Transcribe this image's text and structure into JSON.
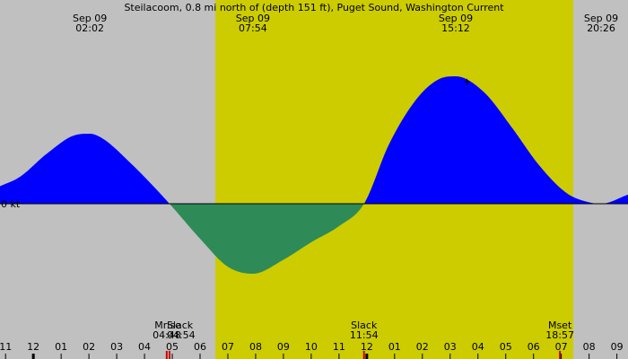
{
  "colors": {
    "background": "#c0c0c0",
    "daylight": "#cccc00",
    "flood": "#0000ff",
    "ebb": "#2e8b57",
    "zero_line": "#000000",
    "moon_marker": "#cc0000"
  },
  "chart_data": {
    "type": "area",
    "title": "Steilacoom, 0.8 mi north of (depth 151 ft), Puget Sound, Washington Current",
    "xlabel": "",
    "ylabel": "",
    "zero_label": "0 kt",
    "x_unit": "hour of day (Sep 09)",
    "xlim": [
      -1.2,
      21.4
    ],
    "ylim": [
      -1.05,
      1.85
    ],
    "daylight": [
      6.55,
      19.43
    ],
    "events_top": [
      {
        "date": "Sep 09",
        "time": "02:02",
        "hour": 2.033
      },
      {
        "date": "Sep 09",
        "time": "07:54",
        "hour": 7.9
      },
      {
        "date": "Sep 09",
        "time": "15:12",
        "hour": 15.2
      },
      {
        "date": "Sep 09",
        "time": "20:26",
        "hour": 20.433
      }
    ],
    "events_bottom": [
      {
        "label": "Mrise",
        "time": "04:48",
        "hour": 4.8,
        "marker": "moon"
      },
      {
        "label": "Slack",
        "time": "04:54",
        "hour": 4.9,
        "marker": "slack"
      },
      {
        "label": "Slack",
        "time": "11:54",
        "hour": 11.9,
        "marker": "slack"
      },
      {
        "label": "Mset",
        "time": "18:57",
        "hour": 18.95,
        "marker": "moon"
      }
    ],
    "x_ticks": [
      {
        "label": "11",
        "hour": -1
      },
      {
        "label": "12",
        "hour": 0
      },
      {
        "label": "01",
        "hour": 1
      },
      {
        "label": "02",
        "hour": 2
      },
      {
        "label": "03",
        "hour": 3
      },
      {
        "label": "04",
        "hour": 4
      },
      {
        "label": "05",
        "hour": 5
      },
      {
        "label": "06",
        "hour": 6
      },
      {
        "label": "07",
        "hour": 7
      },
      {
        "label": "08",
        "hour": 8
      },
      {
        "label": "09",
        "hour": 9
      },
      {
        "label": "10",
        "hour": 10
      },
      {
        "label": "11",
        "hour": 11
      },
      {
        "label": "12",
        "hour": 12
      },
      {
        "label": "01",
        "hour": 13
      },
      {
        "label": "02",
        "hour": 14
      },
      {
        "label": "03",
        "hour": 15
      },
      {
        "label": "04",
        "hour": 16
      },
      {
        "label": "05",
        "hour": 17
      },
      {
        "label": "06",
        "hour": 18
      },
      {
        "label": "07",
        "hour": 19
      },
      {
        "label": "08",
        "hour": 20
      },
      {
        "label": "09",
        "hour": 21
      }
    ],
    "series": [
      {
        "x": [
          -1.2,
          -0.5,
          0.5,
          1.5,
          2.03,
          2.5,
          3.5,
          4.2,
          4.9,
          6.0,
          7.0,
          7.9,
          9.0,
          10.0,
          11.0,
          11.9,
          12.8,
          13.8,
          14.6,
          15.2,
          16.2,
          17.2,
          18.2,
          19.2,
          20.0,
          20.43,
          21.4
        ],
        "y": [
          0.25,
          0.38,
          0.72,
          0.98,
          1.0,
          0.93,
          0.58,
          0.3,
          0.0,
          -0.5,
          -0.9,
          -1.0,
          -0.8,
          -0.55,
          -0.32,
          0.0,
          0.85,
          1.5,
          1.78,
          1.82,
          1.6,
          1.1,
          0.55,
          0.15,
          0.02,
          0.0,
          0.13
        ]
      }
    ]
  }
}
